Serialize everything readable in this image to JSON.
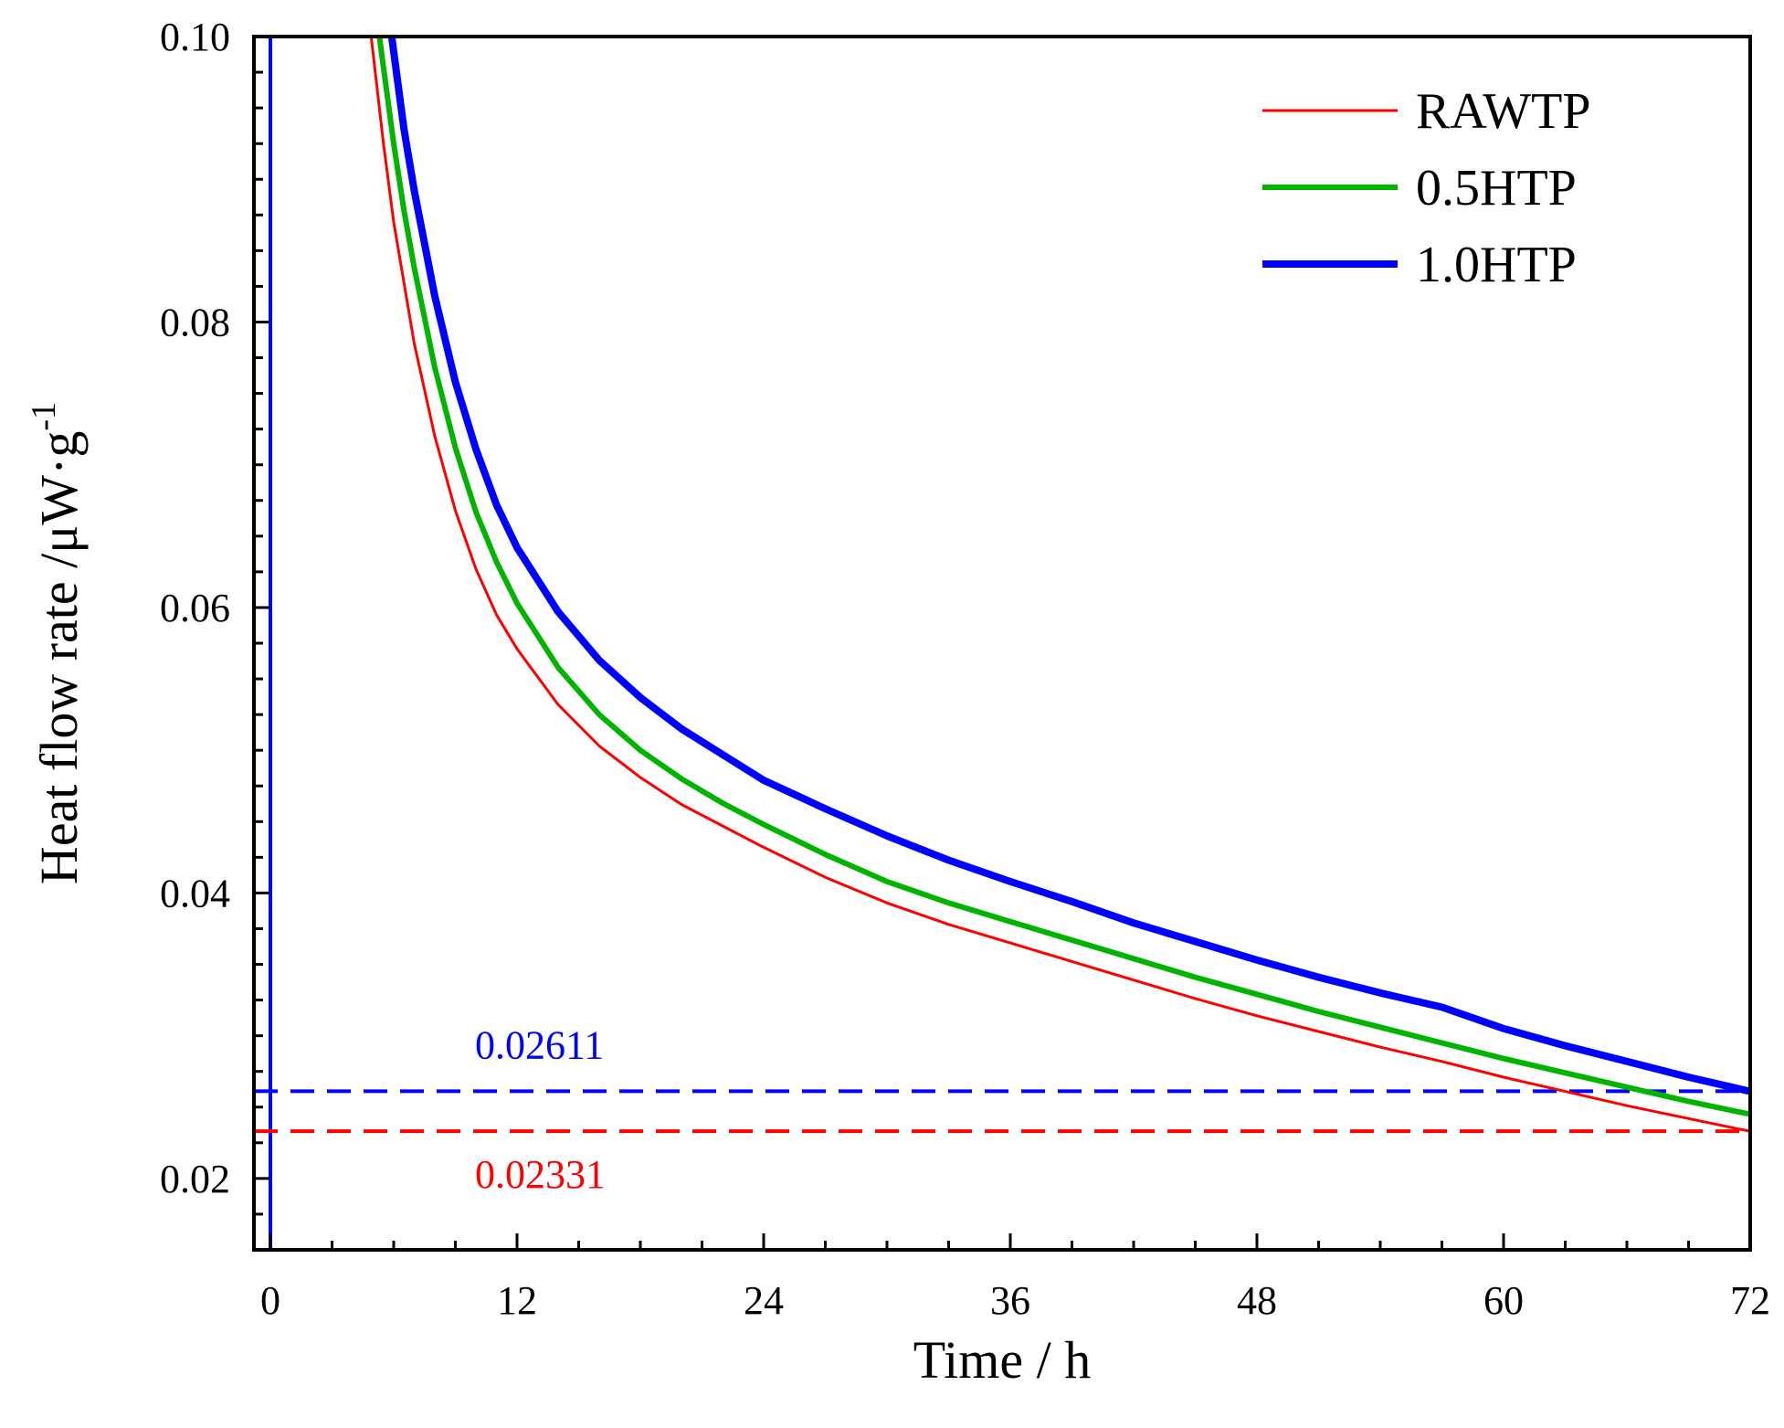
{
  "chart_data": {
    "type": "line",
    "title": "",
    "xlabel": "Time / h",
    "ylabel": {
      "main": "Heat flow rate /μW·g",
      "superscript": "-1"
    },
    "xlim": [
      -0.8,
      72
    ],
    "ylim": [
      0.015,
      0.1
    ],
    "x_ticks": [
      0,
      12,
      24,
      36,
      48,
      60,
      72
    ],
    "y_ticks": [
      0.02,
      0.04,
      0.06,
      0.08,
      0.1
    ],
    "x_tick_labels": [
      "0",
      "12",
      "24",
      "36",
      "48",
      "60",
      "72"
    ],
    "y_tick_labels": [
      "0.02",
      "0.04",
      "0.06",
      "0.08",
      "0.10"
    ],
    "legend_position": "top-right",
    "series": [
      {
        "name": "RAWTP",
        "color": "#ff0000",
        "line_width": "thin",
        "x": [
          4.9,
          5.5,
          6,
          7,
          8,
          9,
          10,
          11,
          12,
          14,
          16,
          18,
          20,
          22,
          24,
          27,
          30,
          33,
          36,
          39,
          42,
          45,
          48,
          51,
          54,
          57,
          60,
          63,
          66,
          69,
          72
        ],
        "y": [
          0.1,
          0.0925,
          0.087,
          0.0785,
          0.072,
          0.0668,
          0.0627,
          0.0595,
          0.0571,
          0.0532,
          0.0503,
          0.0481,
          0.0462,
          0.0447,
          0.0432,
          0.0411,
          0.0393,
          0.0378,
          0.0365,
          0.0352,
          0.0339,
          0.0326,
          0.0314,
          0.0303,
          0.0292,
          0.0282,
          0.0271,
          0.0261,
          0.0251,
          0.0242,
          0.0233
        ]
      },
      {
        "name": "0.5HTP",
        "color": "#00b400",
        "line_width": "medium",
        "x": [
          5.3,
          6,
          6.5,
          7,
          8,
          9,
          10,
          11,
          12,
          14,
          16,
          18,
          20,
          22,
          24,
          27,
          30,
          33,
          36,
          39,
          42,
          45,
          48,
          51,
          54,
          57,
          60,
          63,
          66,
          69,
          72
        ],
        "y": [
          0.1,
          0.0925,
          0.0878,
          0.0838,
          0.0768,
          0.0712,
          0.0667,
          0.0632,
          0.0603,
          0.0558,
          0.0525,
          0.05,
          0.048,
          0.0463,
          0.0448,
          0.0427,
          0.0408,
          0.0393,
          0.038,
          0.0367,
          0.0354,
          0.0341,
          0.0329,
          0.0317,
          0.0306,
          0.0295,
          0.0284,
          0.0274,
          0.0264,
          0.0254,
          0.0245
        ]
      },
      {
        "name": "1.0HTP",
        "color": "#0000ff",
        "line_width": "thick",
        "x": [
          5.9,
          6.5,
          7,
          8,
          9,
          10,
          11,
          12,
          14,
          16,
          18,
          20,
          22,
          24,
          27,
          30,
          33,
          36,
          39,
          42,
          45,
          48,
          51,
          54,
          57,
          60,
          63,
          66,
          69,
          72
        ],
        "y": [
          0.1,
          0.0935,
          0.0892,
          0.0818,
          0.0758,
          0.0711,
          0.0672,
          0.0642,
          0.0597,
          0.0563,
          0.0537,
          0.0515,
          0.0497,
          0.0479,
          0.0459,
          0.044,
          0.0423,
          0.0408,
          0.0394,
          0.0379,
          0.0366,
          0.0353,
          0.0341,
          0.033,
          0.032,
          0.0305,
          0.0293,
          0.0282,
          0.0271,
          0.0261
        ]
      }
    ],
    "reference_lines": [
      {
        "orientation": "vertical",
        "x": 0,
        "color": "#0000ff",
        "style": "solid"
      },
      {
        "orientation": "horizontal",
        "y": 0.02611,
        "color": "#0000ff",
        "style": "dashed",
        "label": "0.02611",
        "label_position": "above-left"
      },
      {
        "orientation": "horizontal",
        "y": 0.02331,
        "color": "#ff0000",
        "style": "dashed",
        "label": "0.02331",
        "label_position": "below-left"
      }
    ]
  }
}
